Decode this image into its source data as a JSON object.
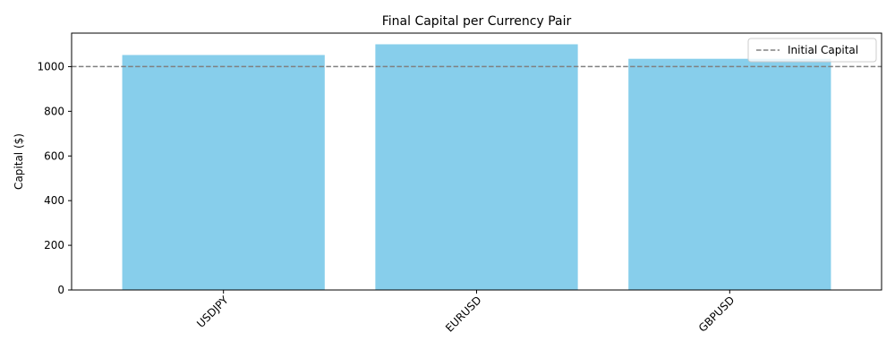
{
  "chart_data": {
    "type": "bar",
    "title": "Final Capital per Currency Pair",
    "xlabel": "",
    "ylabel": "Capital ($)",
    "categories": [
      "USDJPY",
      "EURUSD",
      "GBPUSD"
    ],
    "values": [
      1052,
      1100,
      1035
    ],
    "ylim": [
      0,
      1150
    ],
    "yticks": [
      0,
      200,
      400,
      600,
      800,
      1000
    ],
    "bar_color": "#87ceeb",
    "reference_line": {
      "label": "Initial Capital",
      "value": 1000,
      "color": "#808080",
      "style": "dashed"
    },
    "legend_position": "top-right",
    "grid": false
  }
}
